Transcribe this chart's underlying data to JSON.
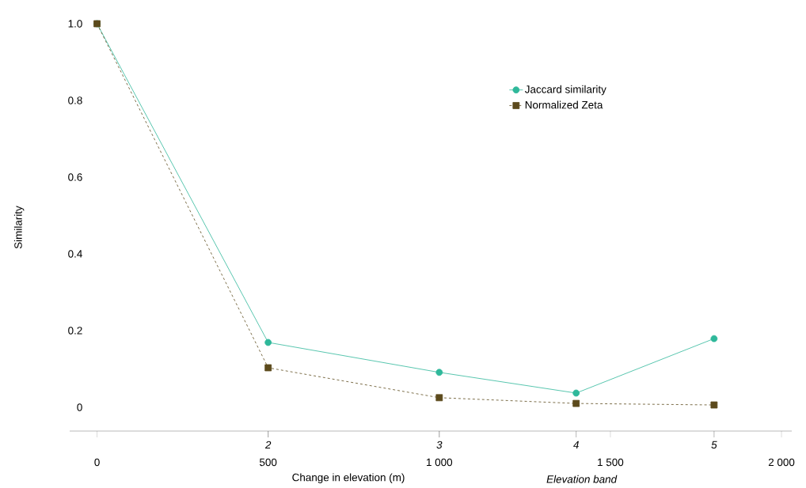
{
  "chart_data": {
    "type": "line",
    "xlabel": "Change in elevation (m)",
    "ylabel": "Similarity",
    "annotations": [
      "2",
      "3",
      "4",
      "5",
      "Elevation band"
    ],
    "x": [
      0,
      500,
      1000,
      1400,
      1803
    ],
    "series": [
      {
        "name": "Jaccard similarity",
        "color": "#2fb89a",
        "marker": "circle",
        "line_style": "solid",
        "values": [
          1.0,
          0.169,
          0.091,
          0.037,
          0.179
        ]
      },
      {
        "name": "Normalized Zeta",
        "color": "#5c4a1c",
        "marker": "square",
        "line_style": "dashed",
        "values": [
          1.0,
          0.103,
          0.025,
          0.01,
          0.006
        ]
      }
    ],
    "xlim": [
      -80,
      2030
    ],
    "ylim": [
      -0.062,
      1.0
    ],
    "xticks": [
      0,
      {
        "value": 500,
        "label": "500"
      },
      {
        "value": 1000,
        "label": "1 000"
      },
      {
        "value": 1500,
        "label": "1 500"
      },
      {
        "value": 2000,
        "label": "2 000"
      }
    ],
    "yticks": [
      0,
      {
        "value": 0.2,
        "label": "0.2"
      },
      {
        "value": 0.4,
        "label": "0.4"
      },
      {
        "value": 0.6,
        "label": "0.6"
      },
      {
        "value": 0.8,
        "label": "0.8"
      },
      {
        "value": 1,
        "label": "1.0"
      }
    ],
    "grid": false,
    "legend": "top right"
  }
}
